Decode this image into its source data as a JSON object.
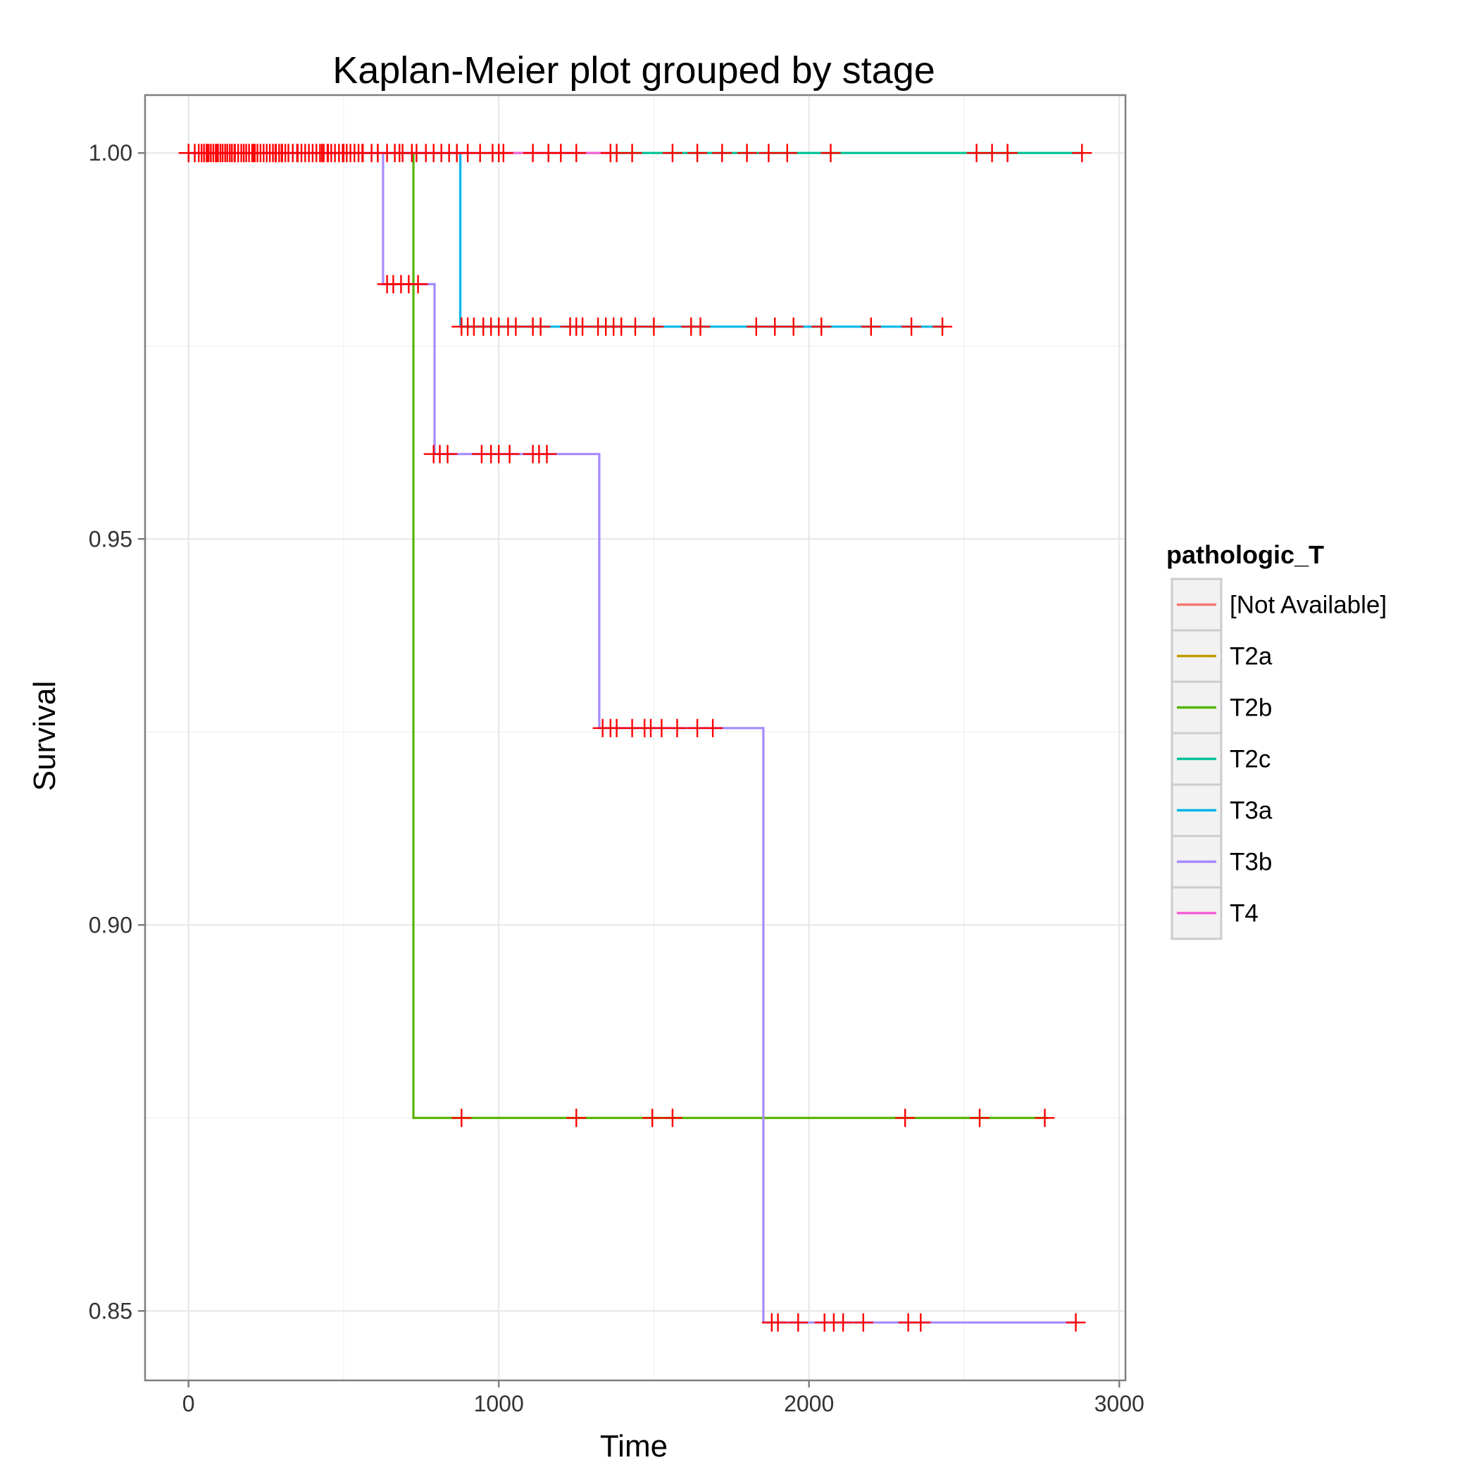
{
  "chart_data": {
    "type": "line",
    "title": "Kaplan-Meier plot grouped by stage",
    "xlabel": "Time",
    "ylabel": "Survival",
    "xlim": [
      -140,
      3020
    ],
    "ylim": [
      0.841,
      1.0075
    ],
    "x_ticks": [
      0,
      1000,
      2000,
      3000
    ],
    "x_tick_labels": [
      "0",
      "1000",
      "2000",
      "3000"
    ],
    "y_ticks": [
      0.85,
      0.9,
      0.95,
      1.0
    ],
    "y_tick_labels": [
      "0.85",
      "0.90",
      "0.95",
      "1.00"
    ],
    "grid": true,
    "legend": {
      "title": "pathologic_T",
      "placement": "right"
    },
    "censor_color": "#FF0000",
    "series": [
      {
        "name": "[Not Available]",
        "color": "#F8766D",
        "steps": [
          [
            0,
            1.0
          ],
          [
            720,
            1.0
          ]
        ],
        "censored": [
          [
            0,
            1.0
          ],
          [
            300,
            1.0
          ],
          [
            720,
            1.0
          ]
        ]
      },
      {
        "name": "T2a",
        "color": "#C49A00",
        "steps": [
          [
            0,
            1.0
          ],
          [
            900,
            1.0
          ]
        ],
        "censored": [
          [
            60,
            1.0
          ],
          [
            450,
            1.0
          ],
          [
            900,
            1.0
          ]
        ]
      },
      {
        "name": "T2b",
        "color": "#53B400",
        "steps": [
          [
            0,
            1.0
          ],
          [
            725,
            1.0
          ],
          [
            725,
            0.875
          ],
          [
            2770,
            0.875
          ]
        ],
        "censored": [
          [
            0,
            1.0
          ],
          [
            90,
            1.0
          ],
          [
            150,
            1.0
          ],
          [
            210,
            1.0
          ],
          [
            280,
            1.0
          ],
          [
            350,
            1.0
          ],
          [
            430,
            1.0
          ],
          [
            500,
            1.0
          ],
          [
            560,
            1.0
          ],
          [
            610,
            1.0
          ],
          [
            680,
            1.0
          ],
          [
            880,
            0.875
          ],
          [
            1250,
            0.875
          ],
          [
            1495,
            0.875
          ],
          [
            1560,
            0.875
          ],
          [
            2310,
            0.875
          ],
          [
            2550,
            0.875
          ],
          [
            2760,
            0.875
          ]
        ]
      },
      {
        "name": "T2c",
        "color": "#00C094",
        "steps": [
          [
            0,
            1.0
          ],
          [
            2880,
            1.0
          ]
        ],
        "censored": [
          [
            20,
            1.0
          ],
          [
            33,
            1.0
          ],
          [
            42,
            1.0
          ],
          [
            50,
            1.0
          ],
          [
            58,
            1.0
          ],
          [
            65,
            1.0
          ],
          [
            72,
            1.0
          ],
          [
            80,
            1.0
          ],
          [
            88,
            1.0
          ],
          [
            95,
            1.0
          ],
          [
            103,
            1.0
          ],
          [
            110,
            1.0
          ],
          [
            118,
            1.0
          ],
          [
            125,
            1.0
          ],
          [
            133,
            1.0
          ],
          [
            140,
            1.0
          ],
          [
            148,
            1.0
          ],
          [
            160,
            1.0
          ],
          [
            170,
            1.0
          ],
          [
            178,
            1.0
          ],
          [
            186,
            1.0
          ],
          [
            195,
            1.0
          ],
          [
            205,
            1.0
          ],
          [
            214,
            1.0
          ],
          [
            222,
            1.0
          ],
          [
            232,
            1.0
          ],
          [
            242,
            1.0
          ],
          [
            252,
            1.0
          ],
          [
            262,
            1.0
          ],
          [
            272,
            1.0
          ],
          [
            282,
            1.0
          ],
          [
            292,
            1.0
          ],
          [
            302,
            1.0
          ],
          [
            312,
            1.0
          ],
          [
            322,
            1.0
          ],
          [
            336,
            1.0
          ],
          [
            352,
            1.0
          ],
          [
            364,
            1.0
          ],
          [
            376,
            1.0
          ],
          [
            388,
            1.0
          ],
          [
            400,
            1.0
          ],
          [
            412,
            1.0
          ],
          [
            424,
            1.0
          ],
          [
            436,
            1.0
          ],
          [
            448,
            1.0
          ],
          [
            460,
            1.0
          ],
          [
            472,
            1.0
          ],
          [
            485,
            1.0
          ],
          [
            497,
            1.0
          ],
          [
            510,
            1.0
          ],
          [
            522,
            1.0
          ],
          [
            535,
            1.0
          ],
          [
            548,
            1.0
          ],
          [
            562,
            1.0
          ],
          [
            590,
            1.0
          ],
          [
            610,
            1.0
          ],
          [
            640,
            1.0
          ],
          [
            665,
            1.0
          ],
          [
            690,
            1.0
          ],
          [
            735,
            1.0
          ],
          [
            765,
            1.0
          ],
          [
            790,
            1.0
          ],
          [
            815,
            1.0
          ],
          [
            840,
            1.0
          ],
          [
            865,
            1.0
          ],
          [
            940,
            1.0
          ],
          [
            980,
            1.0
          ],
          [
            1015,
            1.0
          ],
          [
            1110,
            1.0
          ],
          [
            1160,
            1.0
          ],
          [
            1200,
            1.0
          ],
          [
            1250,
            1.0
          ],
          [
            1380,
            1.0
          ],
          [
            1430,
            1.0
          ],
          [
            1560,
            1.0
          ],
          [
            1640,
            1.0
          ],
          [
            1720,
            1.0
          ],
          [
            1800,
            1.0
          ],
          [
            1870,
            1.0
          ],
          [
            1930,
            1.0
          ],
          [
            2070,
            1.0
          ],
          [
            2540,
            1.0
          ],
          [
            2590,
            1.0
          ],
          [
            2640,
            1.0
          ],
          [
            2880,
            1.0
          ]
        ]
      },
      {
        "name": "T3a",
        "color": "#00B6EB",
        "steps": [
          [
            0,
            1.0
          ],
          [
            876,
            1.0
          ],
          [
            876,
            0.9775
          ],
          [
            2440,
            0.9775
          ]
        ],
        "censored": [
          [
            880,
            0.9775
          ],
          [
            900,
            0.9775
          ],
          [
            920,
            0.9775
          ],
          [
            950,
            0.9775
          ],
          [
            975,
            0.9775
          ],
          [
            1000,
            0.9775
          ],
          [
            1030,
            0.9775
          ],
          [
            1055,
            0.9775
          ],
          [
            1110,
            0.9775
          ],
          [
            1135,
            0.9775
          ],
          [
            1230,
            0.9775
          ],
          [
            1250,
            0.9775
          ],
          [
            1270,
            0.9775
          ],
          [
            1320,
            0.9775
          ],
          [
            1345,
            0.9775
          ],
          [
            1370,
            0.9775
          ],
          [
            1395,
            0.9775
          ],
          [
            1440,
            0.9775
          ],
          [
            1500,
            0.9775
          ],
          [
            1620,
            0.9775
          ],
          [
            1650,
            0.9775
          ],
          [
            1830,
            0.9775
          ],
          [
            1890,
            0.9775
          ],
          [
            1950,
            0.9775
          ],
          [
            2040,
            0.9775
          ],
          [
            2200,
            0.9775
          ],
          [
            2330,
            0.9775
          ],
          [
            2430,
            0.9775
          ]
        ]
      },
      {
        "name": "T3b",
        "color": "#A58AFF",
        "steps": [
          [
            0,
            1.0
          ],
          [
            627,
            1.0
          ],
          [
            627,
            0.983
          ],
          [
            793,
            0.983
          ],
          [
            793,
            0.961
          ],
          [
            1324,
            0.961
          ],
          [
            1324,
            0.9255
          ],
          [
            1853,
            0.9255
          ],
          [
            1853,
            0.8485
          ],
          [
            2870,
            0.8485
          ]
        ],
        "censored": [
          [
            640,
            0.983
          ],
          [
            660,
            0.983
          ],
          [
            685,
            0.983
          ],
          [
            710,
            0.983
          ],
          [
            740,
            0.983
          ],
          [
            790,
            0.961
          ],
          [
            810,
            0.961
          ],
          [
            835,
            0.961
          ],
          [
            945,
            0.961
          ],
          [
            975,
            0.961
          ],
          [
            1000,
            0.961
          ],
          [
            1035,
            0.961
          ],
          [
            1110,
            0.961
          ],
          [
            1130,
            0.961
          ],
          [
            1155,
            0.961
          ],
          [
            1335,
            0.9255
          ],
          [
            1360,
            0.9255
          ],
          [
            1380,
            0.9255
          ],
          [
            1430,
            0.9255
          ],
          [
            1470,
            0.9255
          ],
          [
            1490,
            0.9255
          ],
          [
            1525,
            0.9255
          ],
          [
            1575,
            0.9255
          ],
          [
            1640,
            0.9255
          ],
          [
            1690,
            0.9255
          ],
          [
            1880,
            0.8485
          ],
          [
            1900,
            0.8485
          ],
          [
            1965,
            0.8485
          ],
          [
            2050,
            0.8485
          ],
          [
            2080,
            0.8485
          ],
          [
            2110,
            0.8485
          ],
          [
            2175,
            0.8485
          ],
          [
            2320,
            0.8485
          ],
          [
            2360,
            0.8485
          ],
          [
            2860,
            0.8485
          ]
        ]
      },
      {
        "name": "T4",
        "color": "#FB61D7",
        "steps": [
          [
            0,
            1.0
          ],
          [
            1360,
            1.0
          ]
        ],
        "censored": [
          [
            1000,
            1.0
          ],
          [
            1360,
            1.0
          ]
        ]
      }
    ]
  }
}
